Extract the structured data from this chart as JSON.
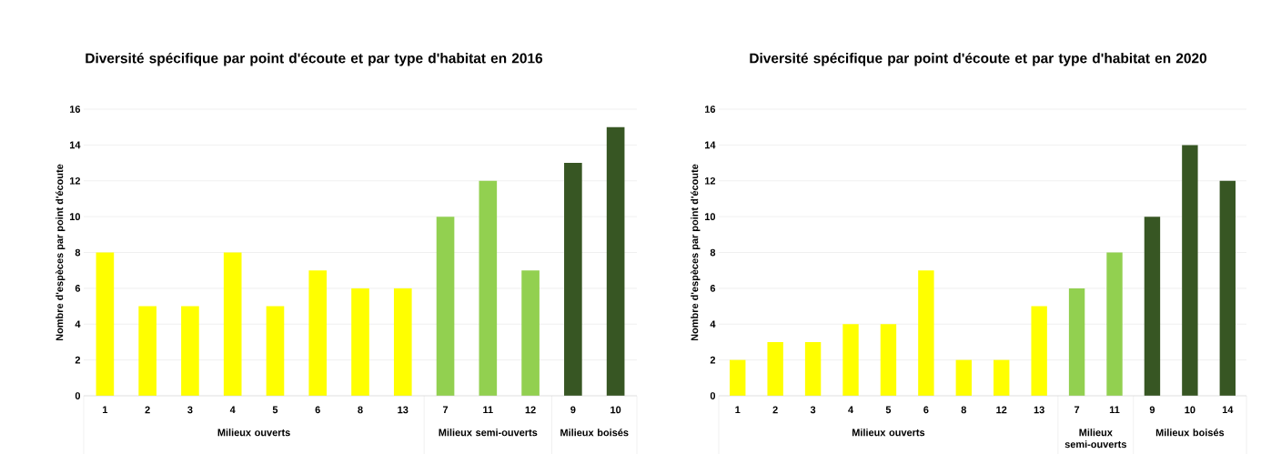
{
  "chart_data": [
    {
      "type": "bar",
      "title": "Diversité spécifique par point d'écoute et par type d'habitat en 2016",
      "ylabel": "Nombre d'espèces par point d'écoute",
      "categories": [
        "1",
        "2",
        "3",
        "4",
        "5",
        "6",
        "8",
        "13",
        "7",
        "11",
        "12",
        "9",
        "10"
      ],
      "values": [
        8,
        5,
        5,
        8,
        5,
        7,
        6,
        6,
        10,
        12,
        7,
        13,
        15
      ],
      "colors": [
        "#ffff00",
        "#ffff00",
        "#ffff00",
        "#ffff00",
        "#ffff00",
        "#ffff00",
        "#ffff00",
        "#ffff00",
        "#92d050",
        "#92d050",
        "#92d050",
        "#375623",
        "#375623"
      ],
      "ylim": [
        0,
        16
      ],
      "yticks": [
        0,
        2,
        4,
        6,
        8,
        10,
        12,
        14,
        16
      ],
      "grid": "y",
      "annotations": [
        "Milieux ouverts",
        "Milieux semi-ouverts",
        "Milieux boisés"
      ]
    },
    {
      "type": "bar",
      "title": "Diversité spécifique par point d'écoute et par type d'habitat en 2020",
      "ylabel": "Nombre d'espèces par point d'écoute",
      "categories": [
        "1",
        "2",
        "3",
        "4",
        "5",
        "6",
        "8",
        "12",
        "13",
        "7",
        "11",
        "9",
        "10",
        "14"
      ],
      "values": [
        2,
        3,
        3,
        4,
        4,
        7,
        2,
        2,
        5,
        6,
        8,
        10,
        14,
        12
      ],
      "colors": [
        "#ffff00",
        "#ffff00",
        "#ffff00",
        "#ffff00",
        "#ffff00",
        "#ffff00",
        "#ffff00",
        "#ffff00",
        "#ffff00",
        "#92d050",
        "#92d050",
        "#375623",
        "#375623",
        "#375623"
      ],
      "ylim": [
        0,
        16
      ],
      "yticks": [
        0,
        2,
        4,
        6,
        8,
        10,
        12,
        14,
        16
      ],
      "grid": "y",
      "annotations": [
        "Milieux ouverts",
        "Milieux semi-ouverts",
        "Milieux boisés"
      ]
    }
  ]
}
